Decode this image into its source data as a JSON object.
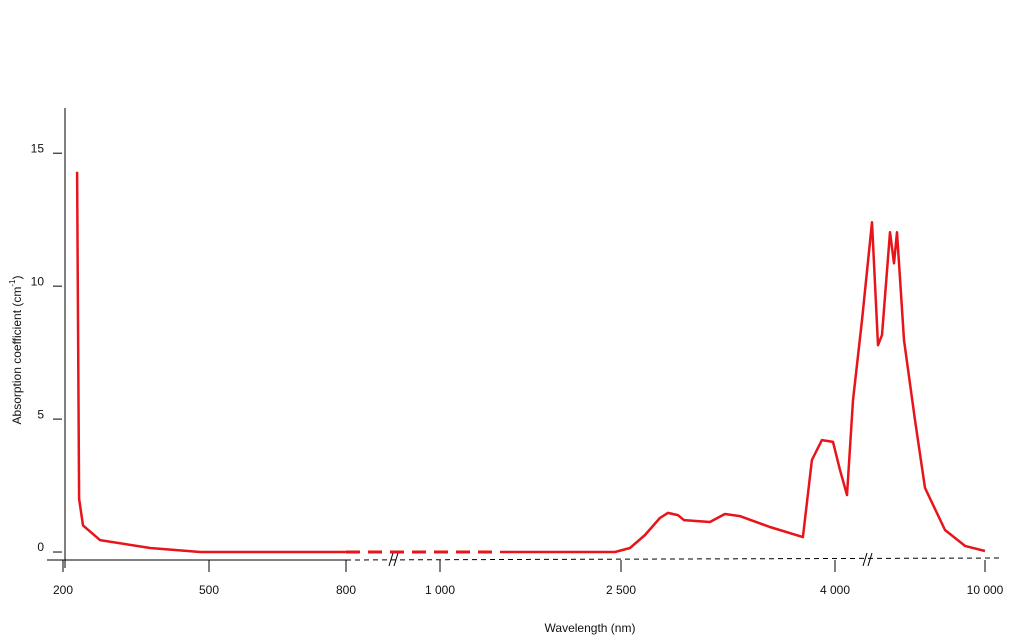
{
  "chart_data": {
    "type": "line",
    "x_label": "Wavelength (nm)",
    "y_label": {
      "text": "Absorption coefficient  (cm",
      "superscript": "-1",
      "close": ")"
    },
    "x": [
      229,
      233,
      241,
      276,
      379,
      482,
      800,
      1497,
      2450,
      2563,
      2668,
      2773,
      2829,
      2899,
      2941,
      3123,
      3228,
      3333,
      3544,
      3775,
      3838,
      3908,
      3986,
      4200,
      4480,
      4720,
      5080,
      5480,
      5720,
      5880,
      6200,
      6360,
      6480,
      6760,
      7200,
      7600,
      8400,
      9200,
      10000
    ],
    "series": [
      {
        "color": "#e8141b",
        "values": [
          14.3,
          2.0,
          1.0,
          0.45,
          0.15,
          0,
          0,
          0,
          0,
          0.15,
          0.64,
          1.28,
          1.47,
          1.39,
          1.2,
          1.13,
          1.43,
          1.35,
          0.94,
          0.56,
          3.46,
          4.21,
          4.14,
          3.08,
          2.14,
          5.71,
          8.72,
          12.4,
          7.78,
          8.16,
          12.03,
          10.86,
          12.03,
          7.97,
          4.96,
          2.41,
          0.83,
          0.23,
          0.04
        ]
      }
    ],
    "dashed_xrange": [
      800,
      1497
    ],
    "xticks": [
      200,
      500,
      800,
      {
        "value": 1000,
        "label": "1 000"
      },
      {
        "value": 2500,
        "label": "2 500"
      },
      {
        "value": 4000,
        "label": "4 000"
      },
      {
        "value": 10000,
        "label": "10 000"
      }
    ],
    "ylim": [
      -0.3,
      16.7
    ],
    "yticks": [
      0,
      5,
      10,
      15
    ]
  }
}
